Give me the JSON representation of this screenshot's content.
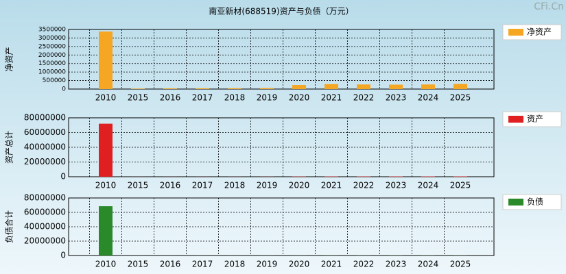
{
  "title": "南亚新材(688519)资产与负债（万元）",
  "watermark": "CFi.Cn",
  "chart_data": [
    {
      "type": "bar",
      "y_label": "净资产",
      "categories": [
        "2010",
        "2015",
        "2016",
        "2017",
        "2018",
        "2019",
        "2020",
        "2021",
        "2022",
        "2023",
        "2024",
        "2025"
      ],
      "series": [
        {
          "name": "净资产",
          "color": "#f5a623",
          "values": [
            3380000,
            30000,
            40000,
            45000,
            50000,
            60000,
            240000,
            290000,
            270000,
            260000,
            270000,
            300000
          ]
        }
      ],
      "ylim": [
        0,
        3500000
      ],
      "yticks": [
        0,
        500000,
        1000000,
        1500000,
        2000000,
        2500000,
        3000000,
        3500000
      ],
      "grid": true
    },
    {
      "type": "bar",
      "y_label": "资产总计",
      "categories": [
        "2010",
        "2015",
        "2016",
        "2017",
        "2018",
        "2019",
        "2020",
        "2021",
        "2022",
        "2023",
        "2024",
        "2025"
      ],
      "series": [
        {
          "name": "资产",
          "color": "#e02020",
          "values": [
            72000000,
            60000,
            80000,
            100000,
            120000,
            150000,
            350000,
            420000,
            430000,
            450000,
            450000,
            480000
          ]
        }
      ],
      "ylim": [
        0,
        80000000
      ],
      "yticks": [
        0,
        20000000,
        40000000,
        60000000,
        80000000
      ],
      "grid": true
    },
    {
      "type": "bar",
      "y_label": "负债合计",
      "categories": [
        "2010",
        "2015",
        "2016",
        "2017",
        "2018",
        "2019",
        "2020",
        "2021",
        "2022",
        "2023",
        "2024",
        "2025"
      ],
      "series": [
        {
          "name": "负债",
          "color": "#2a8a2a",
          "values": [
            68500000,
            30000,
            40000,
            55000,
            70000,
            90000,
            110000,
            130000,
            160000,
            190000,
            180000,
            180000
          ]
        }
      ],
      "ylim": [
        0,
        80000000
      ],
      "yticks": [
        0,
        20000000,
        40000000,
        60000000,
        80000000
      ],
      "grid": true
    }
  ]
}
